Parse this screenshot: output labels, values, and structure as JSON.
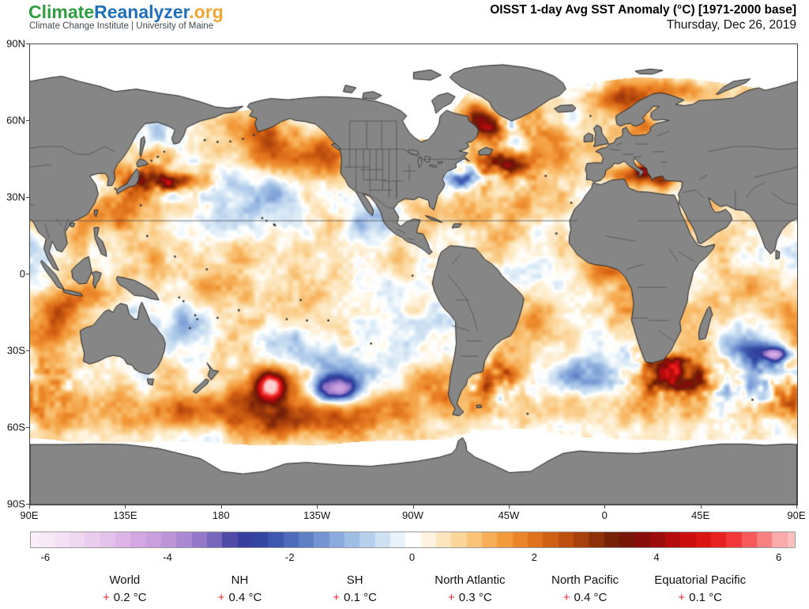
{
  "header": {
    "logo": {
      "part1": "Climate",
      "part2": "Reanalyzer",
      "part3": ".org",
      "part1_color": "#2f9e41",
      "part2_color": "#1f6fba",
      "part3_color": "#f0a432",
      "subtitle": "Climate Change Institute | University of Maine"
    },
    "title": "OISST 1-day Avg SST Anomaly (°C) [1971-2000 base]",
    "date": "Thursday, Dec 26, 2019"
  },
  "map": {
    "lat_ticks": [
      "90N",
      "60N",
      "30N",
      "0",
      "30S",
      "60S",
      "90S"
    ],
    "lon_ticks": [
      "90E",
      "135E",
      "180",
      "135W",
      "90W",
      "45W",
      "0",
      "45E",
      "90E"
    ],
    "land_color": "#868686",
    "coast_color": "#262626",
    "border_color": "#505050",
    "ice_color": "#ffffff"
  },
  "colorbar": {
    "min": -6.25,
    "max": 6.25,
    "ticks": [
      "-6",
      "-4",
      "-2",
      "0",
      "2",
      "4",
      "6"
    ],
    "tick_values": [
      -6,
      -4,
      -2,
      0,
      2,
      4,
      6
    ],
    "stops": [
      [
        -6.5,
        "#fcf2fa"
      ],
      [
        -6.0,
        "#f8e9f7"
      ],
      [
        -5.5,
        "#f0d7f0"
      ],
      [
        -5.0,
        "#e4c1eb"
      ],
      [
        -4.5,
        "#d3a8e2"
      ],
      [
        -4.0,
        "#be94d9"
      ],
      [
        -3.6,
        "#a080cd"
      ],
      [
        -3.2,
        "#7062b9"
      ],
      [
        -2.9,
        "#3e3ea0"
      ],
      [
        -2.6,
        "#303e9c"
      ],
      [
        -2.2,
        "#3e5aaf"
      ],
      [
        -1.8,
        "#5c7cc4"
      ],
      [
        -1.4,
        "#7c9dd6"
      ],
      [
        -1.0,
        "#a0bee5"
      ],
      [
        -0.6,
        "#c4daf0"
      ],
      [
        -0.3,
        "#e1eef8"
      ],
      [
        -0.1,
        "#f8fcfe"
      ],
      [
        0.0,
        "#ffffff"
      ],
      [
        0.1,
        "#fffcf5"
      ],
      [
        0.3,
        "#fdf0d7"
      ],
      [
        0.6,
        "#fce0b0"
      ],
      [
        0.9,
        "#facb86"
      ],
      [
        1.2,
        "#f7b35d"
      ],
      [
        1.5,
        "#f29a3c"
      ],
      [
        1.8,
        "#e98126"
      ],
      [
        2.1,
        "#db6a18"
      ],
      [
        2.4,
        "#c65610"
      ],
      [
        2.7,
        "#ac430c"
      ],
      [
        3.0,
        "#8e3009"
      ],
      [
        3.3,
        "#711f07"
      ],
      [
        3.6,
        "#7a100a"
      ],
      [
        3.9,
        "#940c0c"
      ],
      [
        4.2,
        "#b00c0c"
      ],
      [
        4.5,
        "#cb0e0e"
      ],
      [
        4.9,
        "#e51818"
      ],
      [
        5.3,
        "#f43c3c"
      ],
      [
        5.7,
        "#f87878"
      ],
      [
        6.0,
        "#faaaaa"
      ],
      [
        6.5,
        "#fcd7d7"
      ]
    ]
  },
  "stats": {
    "sign": "+",
    "plus_color": "#e8262d",
    "items": [
      {
        "region": "World",
        "value": "0.2 °C"
      },
      {
        "region": "NH",
        "value": "0.4 °C"
      },
      {
        "region": "SH",
        "value": "0.1 °C"
      },
      {
        "region": "North Atlantic",
        "value": "0.3 °C"
      },
      {
        "region": "North Pacific",
        "value": "0.4 °C"
      },
      {
        "region": "Equatorial Pacific",
        "value": "0.1 °C"
      }
    ]
  }
}
